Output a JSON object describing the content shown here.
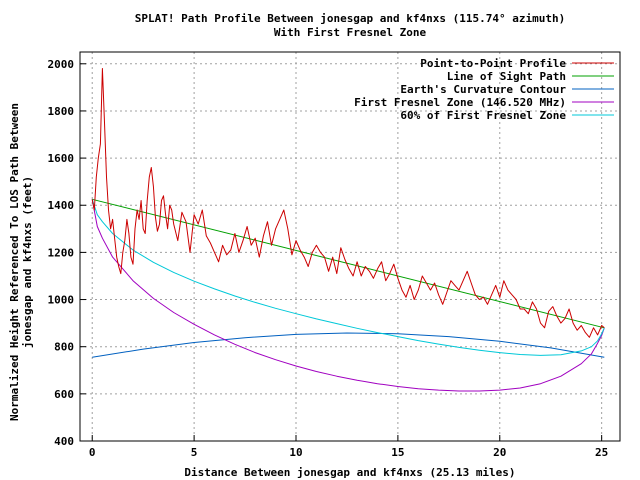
{
  "chart_data": {
    "type": "line",
    "title": "SPLAT! Path Profile Between jonesgap and kf4nxs (115.74° azimuth)",
    "subtitle": "With First Fresnel Zone",
    "xlabel": "Distance Between jonesgap and kf4nxs (25.13 miles)",
    "ylabel_line1": "Normalized Height Referenced To LOS Path Between",
    "ylabel_line2": "jonesgap and kf4nxs (feet)",
    "xlim": [
      -0.6,
      25.9
    ],
    "ylim": [
      400,
      2050
    ],
    "xticks": [
      "0",
      "5",
      "10",
      "15",
      "20",
      "25"
    ],
    "yticks": [
      "400",
      "600",
      "800",
      "1000",
      "1200",
      "1400",
      "1600",
      "1800",
      "2000"
    ],
    "xtick_values": [
      0,
      5,
      10,
      15,
      20,
      25
    ],
    "ytick_values": [
      400,
      600,
      800,
      1000,
      1200,
      1400,
      1600,
      1800,
      2000
    ],
    "grid": true,
    "legend_position": "top-right",
    "series": [
      {
        "name": "Point-to-Point Profile",
        "color": "#cc0000",
        "x": [
          0,
          0.1,
          0.2,
          0.3,
          0.4,
          0.5,
          0.6,
          0.7,
          0.8,
          0.9,
          1.0,
          1.1,
          1.2,
          1.3,
          1.4,
          1.5,
          1.6,
          1.7,
          1.8,
          1.9,
          2.0,
          2.1,
          2.2,
          2.3,
          2.4,
          2.5,
          2.6,
          2.7,
          2.8,
          2.9,
          3.0,
          3.1,
          3.2,
          3.3,
          3.4,
          3.5,
          3.6,
          3.7,
          3.8,
          3.9,
          4.0,
          4.2,
          4.4,
          4.6,
          4.8,
          5.0,
          5.2,
          5.4,
          5.6,
          5.8,
          6.0,
          6.2,
          6.4,
          6.6,
          6.8,
          7.0,
          7.2,
          7.4,
          7.6,
          7.8,
          8.0,
          8.2,
          8.4,
          8.6,
          8.8,
          9.0,
          9.2,
          9.4,
          9.6,
          9.8,
          10.0,
          10.2,
          10.4,
          10.6,
          10.8,
          11.0,
          11.2,
          11.4,
          11.6,
          11.8,
          12.0,
          12.2,
          12.4,
          12.6,
          12.8,
          13.0,
          13.2,
          13.4,
          13.6,
          13.8,
          14.0,
          14.2,
          14.4,
          14.6,
          14.8,
          15.0,
          15.2,
          15.4,
          15.6,
          15.8,
          16.0,
          16.2,
          16.4,
          16.6,
          16.8,
          17.0,
          17.2,
          17.4,
          17.6,
          17.8,
          18.0,
          18.2,
          18.4,
          18.6,
          18.8,
          19.0,
          19.2,
          19.4,
          19.6,
          19.8,
          20.0,
          20.2,
          20.4,
          20.6,
          20.8,
          21.0,
          21.2,
          21.4,
          21.6,
          21.8,
          22.0,
          22.2,
          22.4,
          22.6,
          22.8,
          23.0,
          23.2,
          23.4,
          23.6,
          23.8,
          24.0,
          24.2,
          24.4,
          24.6,
          24.8,
          25.0,
          25.13
        ],
        "y": [
          1425,
          1380,
          1520,
          1600,
          1660,
          1980,
          1750,
          1520,
          1380,
          1300,
          1340,
          1260,
          1180,
          1140,
          1110,
          1200,
          1250,
          1340,
          1280,
          1180,
          1150,
          1300,
          1380,
          1340,
          1420,
          1300,
          1280,
          1420,
          1520,
          1560,
          1480,
          1350,
          1290,
          1320,
          1420,
          1440,
          1360,
          1300,
          1400,
          1380,
          1320,
          1250,
          1370,
          1330,
          1200,
          1360,
          1320,
          1380,
          1270,
          1240,
          1200,
          1160,
          1230,
          1190,
          1210,
          1280,
          1200,
          1250,
          1310,
          1230,
          1260,
          1180,
          1270,
          1330,
          1230,
          1300,
          1340,
          1380,
          1300,
          1190,
          1250,
          1210,
          1180,
          1140,
          1200,
          1230,
          1200,
          1180,
          1120,
          1180,
          1110,
          1220,
          1170,
          1130,
          1100,
          1160,
          1100,
          1140,
          1120,
          1090,
          1130,
          1160,
          1080,
          1110,
          1150,
          1090,
          1040,
          1010,
          1060,
          1000,
          1040,
          1100,
          1070,
          1040,
          1070,
          1020,
          980,
          1030,
          1080,
          1060,
          1040,
          1080,
          1120,
          1070,
          1020,
          1000,
          1010,
          980,
          1020,
          1060,
          1010,
          1080,
          1040,
          1020,
          1000,
          960,
          960,
          940,
          990,
          960,
          900,
          880,
          950,
          970,
          930,
          900,
          920,
          960,
          900,
          870,
          890,
          860,
          840,
          880,
          850,
          890,
          880
        ]
      },
      {
        "name": "Line of Sight Path",
        "color": "#00a000",
        "x": [
          0,
          25.13
        ],
        "y": [
          1425,
          880
        ]
      },
      {
        "name": "Earth's Curvature Contour",
        "color": "#0060c0",
        "x": [
          0,
          2.5,
          5,
          7.5,
          10,
          12.5,
          15,
          17.5,
          20,
          22.5,
          25.13
        ],
        "y": [
          755,
          790,
          818,
          838,
          852,
          858,
          855,
          843,
          823,
          795,
          755
        ]
      },
      {
        "name": "First Fresnel Zone (146.520 MHz)",
        "color": "#a000c0",
        "x": [
          0,
          0.25,
          0.5,
          1,
          2,
          3,
          4,
          5,
          6,
          7,
          8,
          9,
          10,
          11,
          12,
          13,
          14,
          15,
          16,
          17,
          18,
          19,
          20,
          21,
          22,
          23,
          24,
          24.5,
          24.8,
          25,
          25.13
        ],
        "y": [
          1425,
          1310,
          1260,
          1180,
          1080,
          1005,
          945,
          895,
          850,
          810,
          775,
          745,
          718,
          695,
          675,
          658,
          643,
          631,
          622,
          616,
          612,
          612,
          616,
          625,
          643,
          675,
          728,
          770,
          815,
          848,
          880
        ]
      },
      {
        "name": "60% of First Fresnel Zone",
        "color": "#00c8d8",
        "x": [
          0,
          0.25,
          0.5,
          1,
          2,
          3,
          4,
          5,
          6,
          7,
          8,
          9,
          10,
          11,
          12,
          13,
          14,
          15,
          16,
          17,
          18,
          19,
          20,
          21,
          22,
          23,
          24,
          24.5,
          24.8,
          25,
          25.13
        ],
        "y": [
          1425,
          1360,
          1330,
          1280,
          1210,
          1158,
          1115,
          1078,
          1045,
          1015,
          988,
          963,
          940,
          918,
          898,
          878,
          860,
          843,
          826,
          811,
          797,
          785,
          775,
          767,
          763,
          766,
          782,
          800,
          825,
          855,
          880
        ]
      }
    ]
  }
}
